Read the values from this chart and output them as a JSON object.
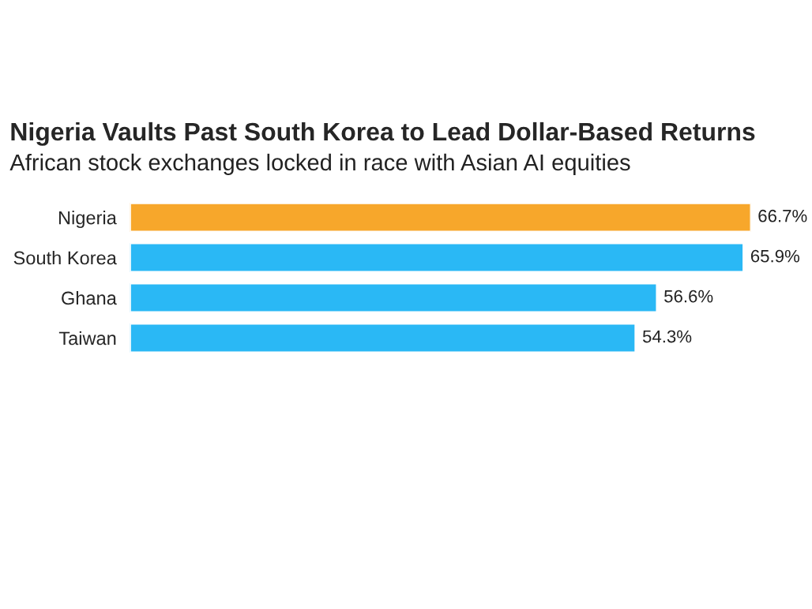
{
  "chart_data": {
    "type": "bar",
    "orientation": "horizontal",
    "title": "Nigeria Vaults Past South Korea to Lead Dollar-Based Returns",
    "subtitle": "African stock exchanges locked in race with Asian AI equities",
    "categories": [
      "Nigeria",
      "South Korea",
      "Ghana",
      "Taiwan"
    ],
    "values": [
      66.7,
      65.9,
      56.6,
      54.3
    ],
    "value_labels": [
      "66.7%",
      "65.9%",
      "56.6%",
      "54.3%"
    ],
    "colors": [
      "#f7a72b",
      "#2ab8f5",
      "#2ab8f5",
      "#2ab8f5"
    ],
    "grid": false,
    "legend": false
  }
}
